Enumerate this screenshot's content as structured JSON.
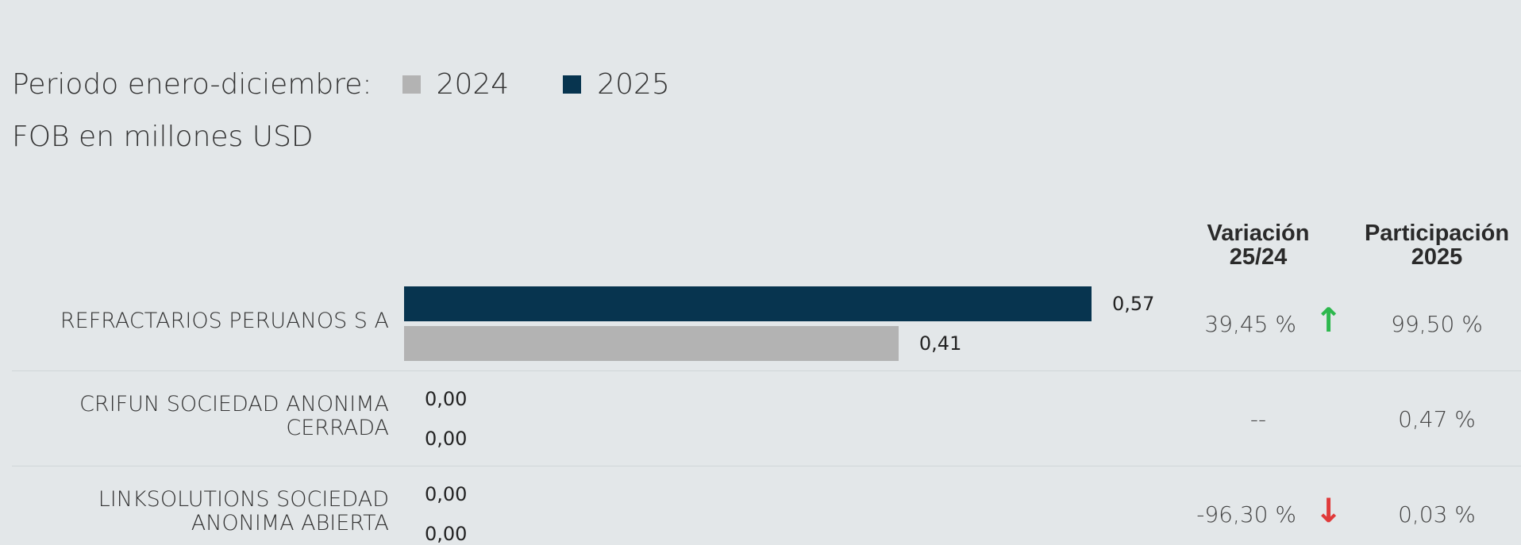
{
  "legend": {
    "label": "Periodo enero-diciembre:",
    "items": [
      {
        "name": "2024",
        "color": "#b3b3b3"
      },
      {
        "name": "2025",
        "color": "#07344f"
      }
    ]
  },
  "subtitle": "FOB en millones USD",
  "headers": {
    "variation_line1": "Variación",
    "variation_line2": "25/24",
    "participation_line1": "Participación",
    "participation_line2": "2025"
  },
  "colors": {
    "up": "#2db84d",
    "down": "#e03a3a"
  },
  "chart_data": {
    "type": "bar",
    "orientation": "horizontal",
    "categories": [
      "REFRACTARIOS PERUANOS S A",
      "CRIFUN SOCIEDAD ANONIMA CERRADA",
      "LINKSOLUTIONS SOCIEDAD ANONIMA ABIERTA"
    ],
    "series": [
      {
        "name": "2025",
        "values": [
          0.57,
          0.0,
          0.0
        ],
        "labels": [
          "0,57",
          "0,00",
          "0,00"
        ],
        "color": "#07344f"
      },
      {
        "name": "2024",
        "values": [
          0.41,
          0.0,
          0.0
        ],
        "labels": [
          "0,41",
          "0,00",
          "0,00"
        ],
        "color": "#b3b3b3"
      }
    ],
    "variation": [
      "39,45 %",
      "--",
      "-96,30 %"
    ],
    "variation_direction": [
      "up",
      "none",
      "down"
    ],
    "participation": [
      "99,50 %",
      "0,47 %",
      "0,03 %"
    ],
    "xlim": [
      0,
      0.57
    ]
  }
}
